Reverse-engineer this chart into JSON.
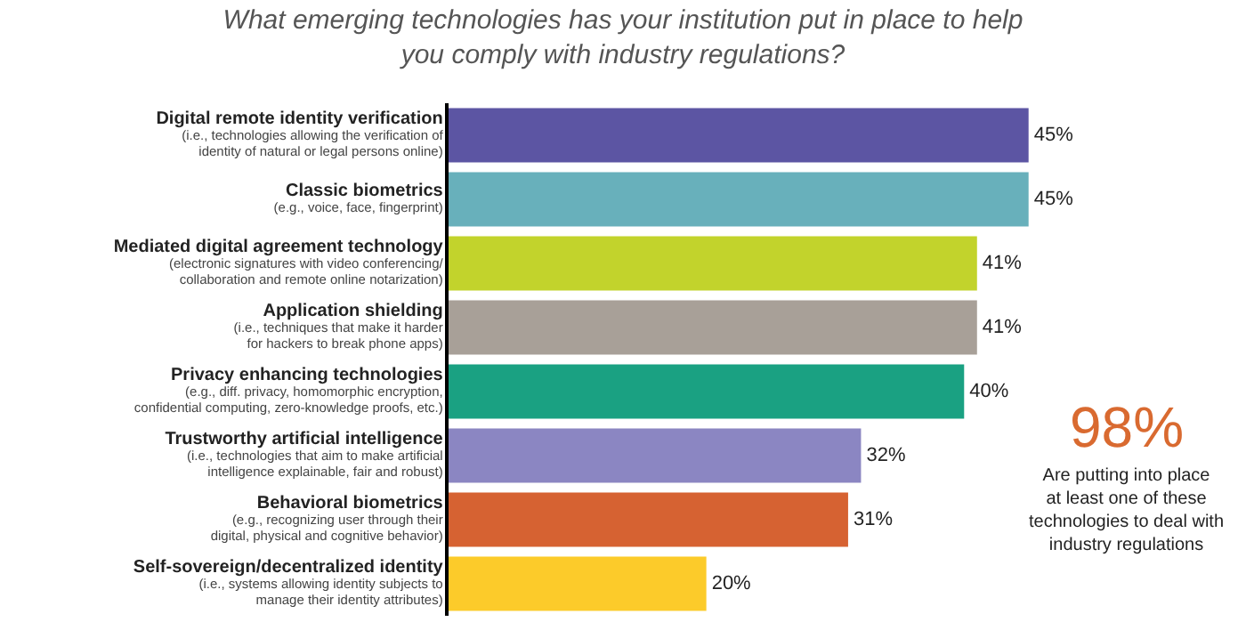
{
  "chart_data": {
    "type": "bar",
    "orientation": "horizontal",
    "title": "What emerging technologies has your institution put in place to help\nyou comply with industry regulations?",
    "categories": [
      "Digital remote identity verification\n(i.e., technologies allowing the verification of\nidentity of natural or legal persons online)",
      "Classic biometrics\n(e.g., voice, face, fingerprint)",
      "Mediated digital agreement technology\n(electronic signatures with video conferencing/\ncollaboration and remote online notarization)",
      "Application shielding\n(i.e., techniques that make it harder\nfor hackers to break phone apps)",
      "Privacy enhancing technologies\n(e.g., diff. privacy, homomorphic encryption,\nconfidential computing, zero-knowledge proofs, etc.)",
      "Trustworthy artificial intelligence\n(i.e., technologies that aim to make artificial\nintelligence explainable, fair and robust)",
      "Behavioral biometrics\n(e.g., recognizing user through their\ndigital, physical and cognitive behavior)",
      "Self-sovereign/decentralized identity\n(i.e., systems allowing identity subjects to\nmanage their identity attributes)"
    ],
    "values": [
      45,
      45,
      41,
      41,
      40,
      32,
      31,
      20
    ],
    "colors": [
      "#5c55a3",
      "#68b0bb",
      "#c2d32c",
      "#a8a098",
      "#1aa182",
      "#8b86c2",
      "#d66232",
      "#fccb2a"
    ],
    "value_labels": [
      "45%",
      "45%",
      "41%",
      "41%",
      "40%",
      "32%",
      "31%",
      "20%"
    ],
    "tick_labels": "y",
    "annotations": [
      "98%",
      "Are putting into place\nat least one of these\ntechnologies to deal with\nindustry regulations"
    ]
  }
}
